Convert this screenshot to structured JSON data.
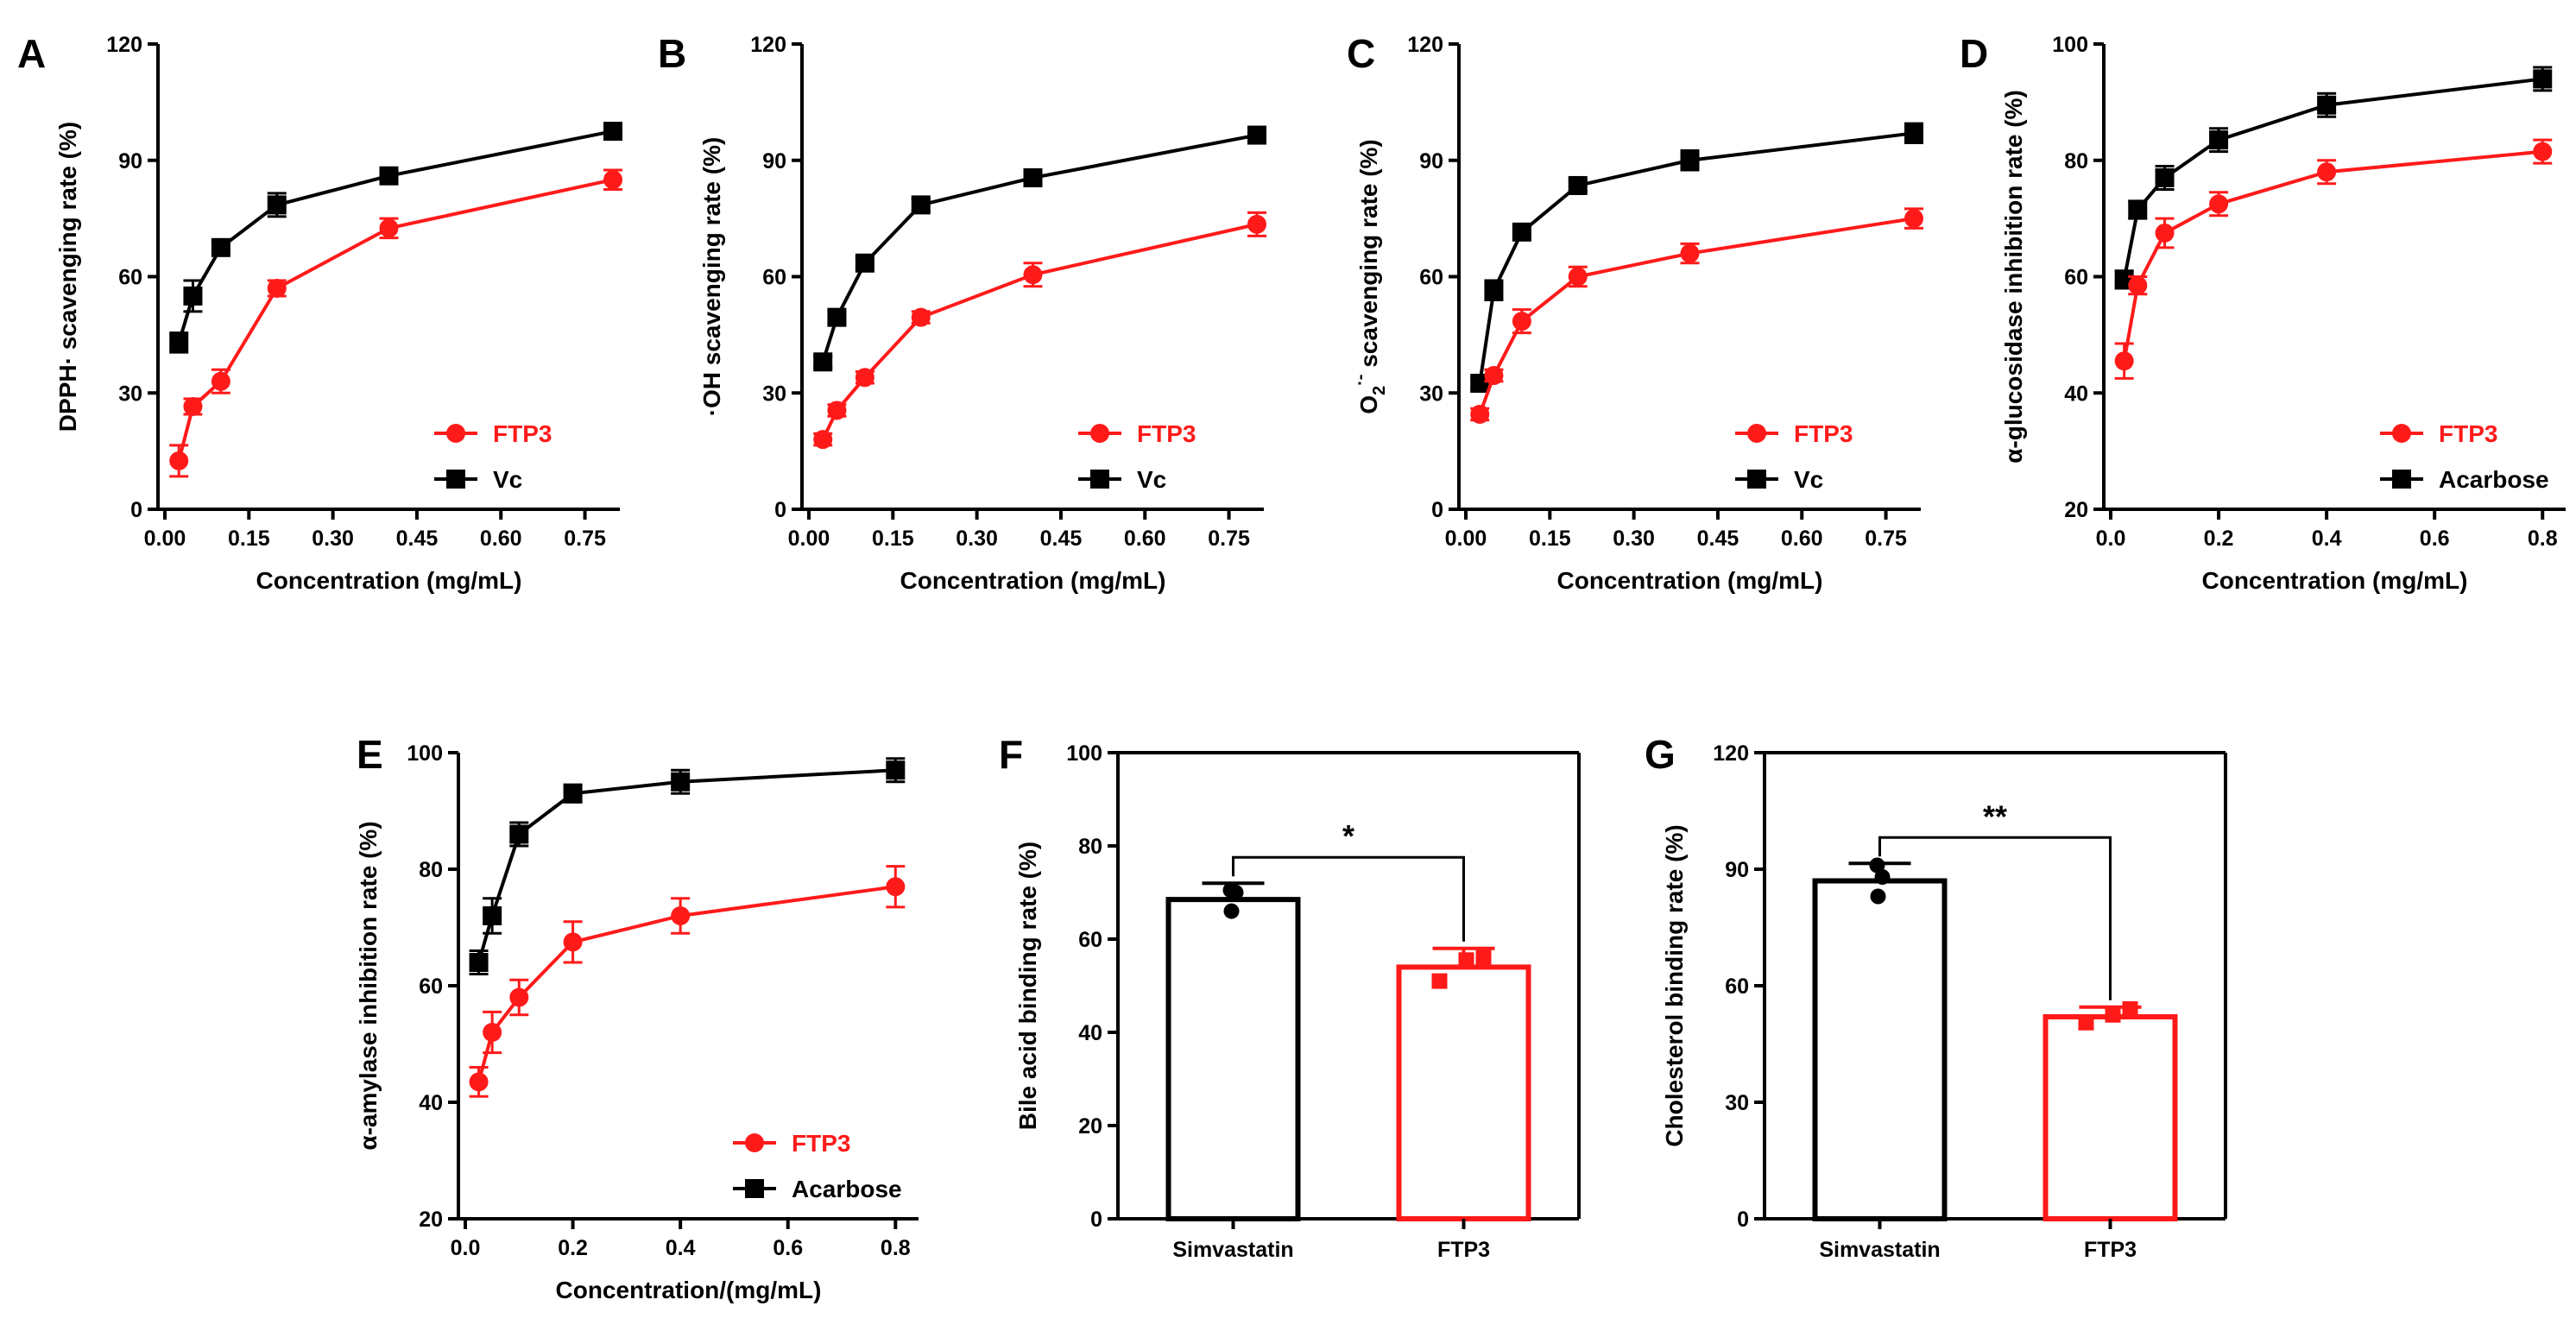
{
  "colors": {
    "ftp3": "#ff1a1a",
    "control": "#000000"
  },
  "chart_data": [
    {
      "panel": "A",
      "type": "line",
      "xlabel": "Concentration (mg/mL)",
      "ylabel": "DPPH· scavenging rate (%)",
      "xlim": [
        0,
        0.8
      ],
      "ylim": [
        0,
        120
      ],
      "xticks": [
        "0.00",
        "0.15",
        "0.30",
        "0.45",
        "0.60",
        "0.75"
      ],
      "yticks": [
        "0",
        "30",
        "60",
        "90",
        "120"
      ],
      "legend": [
        "FTP3",
        "Vc"
      ],
      "series": [
        {
          "name": "FTP3",
          "color": "#ff1a1a",
          "marker": "circle",
          "x": [
            0.025,
            0.05,
            0.1,
            0.2,
            0.4,
            0.8
          ],
          "y": [
            12.5,
            26.5,
            33,
            57,
            72.5,
            85
          ],
          "err": [
            4,
            2,
            3,
            2,
            2.5,
            2.5
          ]
        },
        {
          "name": "Vc",
          "color": "#000000",
          "marker": "square",
          "x": [
            0.025,
            0.05,
            0.1,
            0.2,
            0.4,
            0.8
          ],
          "y": [
            43,
            55,
            67.5,
            78.5,
            86,
            97.5
          ],
          "err": [
            2.5,
            4,
            1.5,
            3,
            1.5,
            1.5
          ]
        }
      ]
    },
    {
      "panel": "B",
      "type": "line",
      "xlabel": "Concentration (mg/mL)",
      "ylabel": "·OH scavenging rate (%)",
      "xlim": [
        0,
        0.8
      ],
      "ylim": [
        0,
        120
      ],
      "xticks": [
        "0.00",
        "0.15",
        "0.30",
        "0.45",
        "0.60",
        "0.75"
      ],
      "yticks": [
        "0",
        "30",
        "60",
        "90",
        "120"
      ],
      "legend": [
        "FTP3",
        "Vc"
      ],
      "series": [
        {
          "name": "FTP3",
          "color": "#ff1a1a",
          "marker": "circle",
          "x": [
            0.025,
            0.05,
            0.1,
            0.2,
            0.4,
            0.8
          ],
          "y": [
            18,
            25.5,
            34,
            49.5,
            60.5,
            73.5
          ],
          "err": [
            1.5,
            1.5,
            1.5,
            1.5,
            3,
            3
          ]
        },
        {
          "name": "Vc",
          "color": "#000000",
          "marker": "square",
          "x": [
            0.025,
            0.05,
            0.1,
            0.2,
            0.4,
            0.8
          ],
          "y": [
            38,
            49.5,
            63.5,
            78.5,
            85.5,
            96.5
          ],
          "err": [
            1.5,
            1.5,
            1.5,
            1.5,
            1.5,
            1.5
          ]
        }
      ]
    },
    {
      "panel": "C",
      "type": "line",
      "xlabel": "Concentration (mg/mL)",
      "ylabel": "O2·- scavenging rate (%)",
      "ylabel_parts": {
        "base": "O",
        "sub": "2",
        "sup": "·-",
        "rest": " scavenging rate (%)"
      },
      "xlim": [
        0,
        0.8
      ],
      "ylim": [
        0,
        120
      ],
      "xticks": [
        "0.00",
        "0.15",
        "0.30",
        "0.45",
        "0.60",
        "0.75"
      ],
      "yticks": [
        "0",
        "30",
        "60",
        "90",
        "120"
      ],
      "legend": [
        "FTP3",
        "Vc"
      ],
      "series": [
        {
          "name": "FTP3",
          "color": "#ff1a1a",
          "marker": "circle",
          "x": [
            0.025,
            0.05,
            0.1,
            0.2,
            0.4,
            0.8
          ],
          "y": [
            24.5,
            34.5,
            48.5,
            60,
            66,
            75
          ],
          "err": [
            1.5,
            1.5,
            3,
            2.5,
            2.5,
            2.5
          ]
        },
        {
          "name": "Vc",
          "color": "#000000",
          "marker": "square",
          "x": [
            0.025,
            0.05,
            0.1,
            0.2,
            0.4,
            0.8
          ],
          "y": [
            32.5,
            56.5,
            71.5,
            83.5,
            90,
            97
          ],
          "err": [
            1.5,
            2.5,
            1.5,
            1.5,
            2.5,
            2.5
          ]
        }
      ]
    },
    {
      "panel": "D",
      "type": "line",
      "xlabel": "Concentration (mg/mL)",
      "ylabel": "α-glucosidase inhibition rate (%)",
      "xlim": [
        0,
        0.83
      ],
      "ylim": [
        20,
        100
      ],
      "xticks": [
        "0.0",
        "0.2",
        "0.4",
        "0.6",
        "0.8"
      ],
      "yticks": [
        "20",
        "40",
        "60",
        "80",
        "100"
      ],
      "legend": [
        "FTP3",
        "Acarbose"
      ],
      "series": [
        {
          "name": "FTP3",
          "color": "#ff1a1a",
          "marker": "circle",
          "x": [
            0.025,
            0.05,
            0.1,
            0.2,
            0.4,
            0.8
          ],
          "y": [
            45.5,
            58.5,
            67.5,
            72.5,
            78,
            81.5
          ],
          "err": [
            3,
            1.5,
            2.5,
            2,
            2,
            2
          ]
        },
        {
          "name": "Acarbose",
          "color": "#000000",
          "marker": "square",
          "x": [
            0.025,
            0.05,
            0.1,
            0.2,
            0.4,
            0.8
          ],
          "y": [
            59.5,
            71.5,
            77,
            83.5,
            89.5,
            94
          ],
          "err": [
            1.5,
            1.5,
            2,
            2,
            2,
            2
          ]
        }
      ]
    },
    {
      "panel": "E",
      "type": "line",
      "xlabel": "Concentration/(mg/mL)",
      "ylabel": "α-amylase inhibition rate (%)",
      "xlim": [
        0,
        0.83
      ],
      "ylim": [
        20,
        100
      ],
      "xticks": [
        "0.0",
        "0.2",
        "0.4",
        "0.6",
        "0.8"
      ],
      "yticks": [
        "20",
        "40",
        "60",
        "80",
        "100"
      ],
      "legend": [
        "FTP3",
        "Acarbose"
      ],
      "series": [
        {
          "name": "FTP3",
          "color": "#ff1a1a",
          "marker": "circle",
          "x": [
            0.025,
            0.05,
            0.1,
            0.2,
            0.4,
            0.8
          ],
          "y": [
            43.5,
            52,
            58,
            67.5,
            72,
            77
          ],
          "err": [
            2.5,
            3.5,
            3,
            3.5,
            3,
            3.5
          ]
        },
        {
          "name": "Acarbose",
          "color": "#000000",
          "marker": "square",
          "x": [
            0.025,
            0.05,
            0.1,
            0.2,
            0.4,
            0.8
          ],
          "y": [
            64,
            72,
            86,
            93,
            95,
            97
          ],
          "err": [
            2,
            3,
            2,
            1.5,
            2,
            2
          ]
        }
      ]
    },
    {
      "panel": "F",
      "type": "bar",
      "ylabel": "Bile acid binding rate (%)",
      "ylim": [
        0,
        100
      ],
      "yticks": [
        "0",
        "20",
        "40",
        "60",
        "80",
        "100"
      ],
      "categories": [
        "Simvastatin",
        "FTP3"
      ],
      "values": [
        68.5,
        54
      ],
      "err": [
        3.5,
        4
      ],
      "points": [
        [
          66,
          70,
          70.5
        ],
        [
          51,
          55.5,
          56
        ]
      ],
      "colors": [
        "#000000",
        "#ff1a1a"
      ],
      "significance": "*"
    },
    {
      "panel": "G",
      "type": "bar",
      "ylabel": "Cholesterol binding rate (%)",
      "ylim": [
        0,
        120
      ],
      "yticks": [
        "0",
        "30",
        "60",
        "90",
        "120"
      ],
      "categories": [
        "Simvastatin",
        "FTP3"
      ],
      "values": [
        87,
        52
      ],
      "err": [
        4.5,
        2.5
      ],
      "points": [
        [
          83,
          88,
          91
        ],
        [
          50.5,
          52.5,
          54
        ]
      ],
      "colors": [
        "#000000",
        "#ff1a1a"
      ],
      "significance": "**"
    }
  ]
}
